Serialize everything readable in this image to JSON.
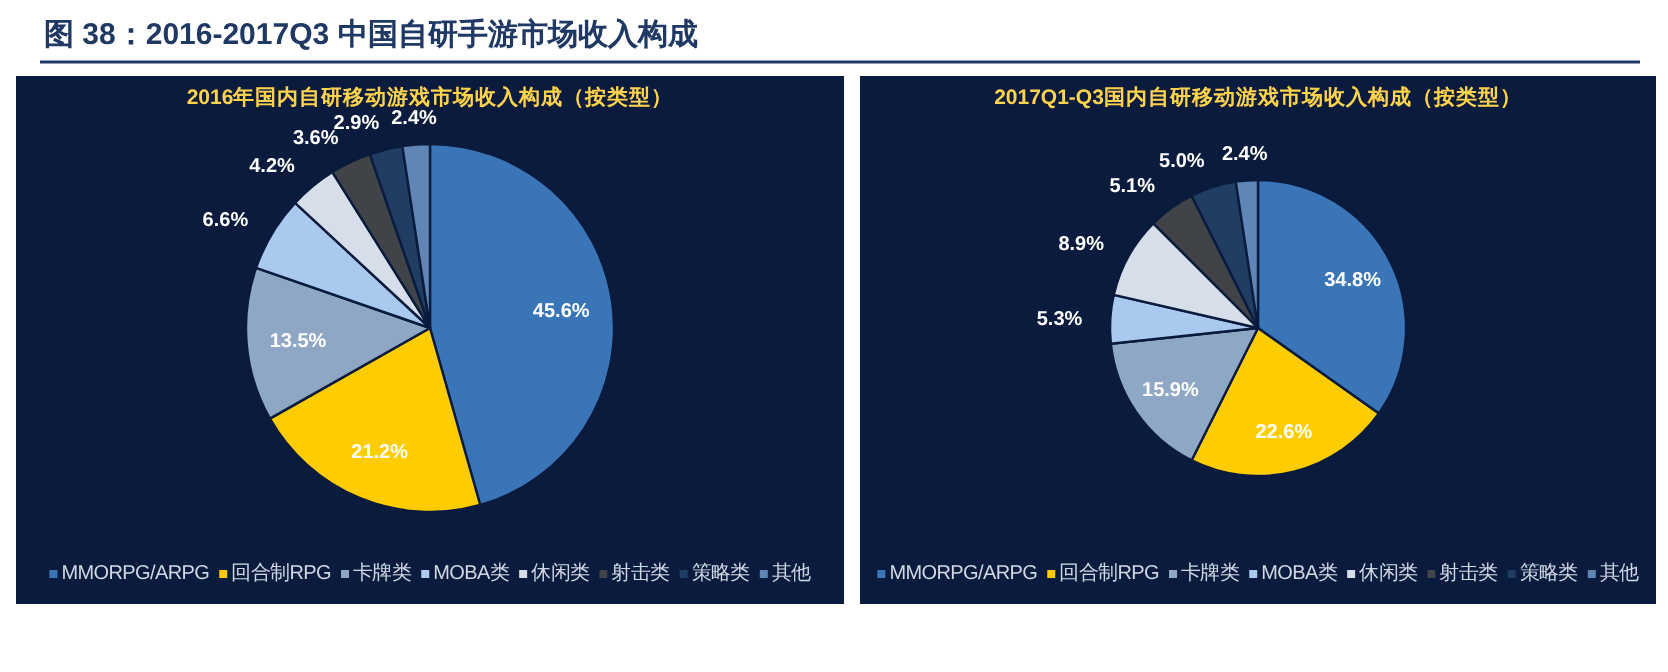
{
  "chart_data": [
    {
      "type": "pie",
      "title": "2016年国内自研移动游戏市场收入构成（按类型）",
      "annotations": [
        "图 38：2016-2017Q3 中国自研手游市场收入构成"
      ],
      "legend": "bottom",
      "categories": [
        "MMORPG/ARPG",
        "回合制RPG",
        "卡牌类",
        "MOBA类",
        "休闲类",
        "射击类",
        "策略类",
        "其他"
      ],
      "values": [
        45.6,
        21.2,
        13.5,
        6.6,
        4.2,
        3.6,
        2.9,
        2.4
      ],
      "value_labels": [
        "45.6%",
        "21.2%",
        "13.5%",
        "6.6%",
        "4.2%",
        "3.6%",
        "2.9%",
        "2.4%"
      ],
      "colors": [
        "#3a75b8",
        "#ffcc00",
        "#8ea7c4",
        "#a9c9ee",
        "#d5dee9",
        "#404448",
        "#203d63",
        "#5f86b5"
      ]
    },
    {
      "type": "pie",
      "title": "2017Q1-Q3国内自研移动游戏市场收入构成（按类型）",
      "legend": "bottom",
      "categories": [
        "MMORPG/ARPG",
        "回合制RPG",
        "卡牌类",
        "MOBA类",
        "休闲类",
        "射击类",
        "策略类",
        "其他"
      ],
      "values": [
        34.8,
        22.6,
        15.9,
        5.3,
        8.9,
        5.1,
        5.0,
        2.4
      ],
      "value_labels": [
        "34.8%",
        "22.6%",
        "15.9%",
        "5.3%",
        "8.9%",
        "5.1%",
        "5.0%",
        "2.4%"
      ],
      "colors": [
        "#3a75b8",
        "#ffcc00",
        "#8ea7c4",
        "#a9c9ee",
        "#d5dee9",
        "#404448",
        "#203d63",
        "#5f86b5"
      ]
    }
  ]
}
